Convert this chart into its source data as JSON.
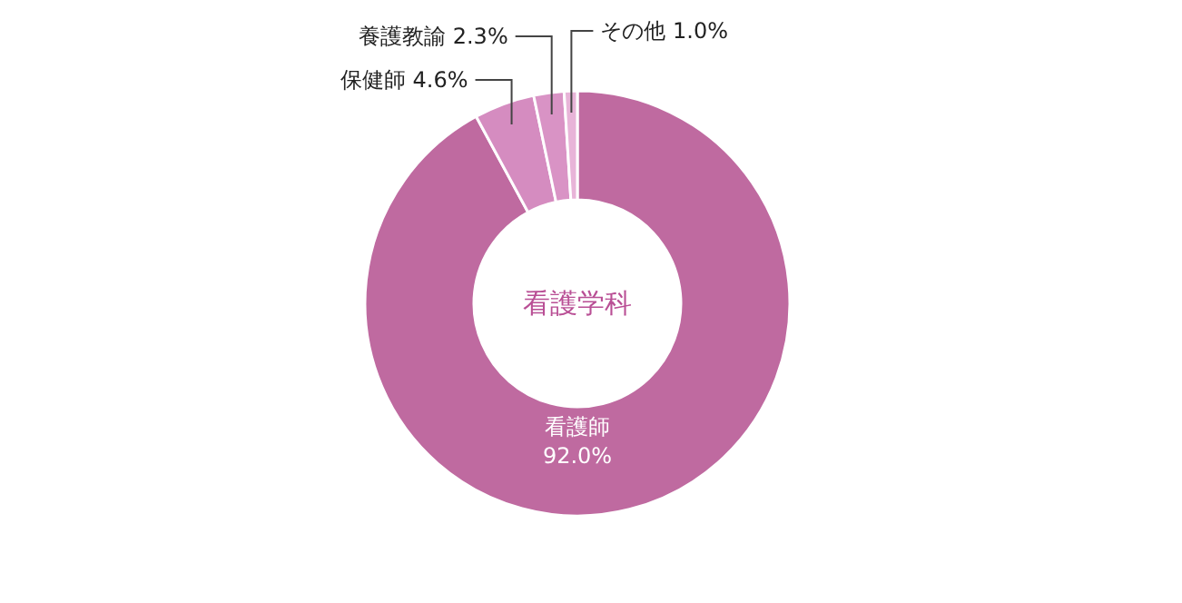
{
  "chart_data": {
    "type": "donut",
    "title": "看護学科",
    "categories": [
      "看護師",
      "保健師",
      "養護教諭",
      "その他"
    ],
    "values": [
      92.0,
      4.6,
      2.3,
      1.0
    ],
    "value_labels": [
      "92.0%",
      "4.6%",
      "2.3%",
      "1.0%"
    ],
    "colors": [
      "#bf6aa0",
      "#d58cc0",
      "#d993c5",
      "#e8b4d8"
    ]
  }
}
